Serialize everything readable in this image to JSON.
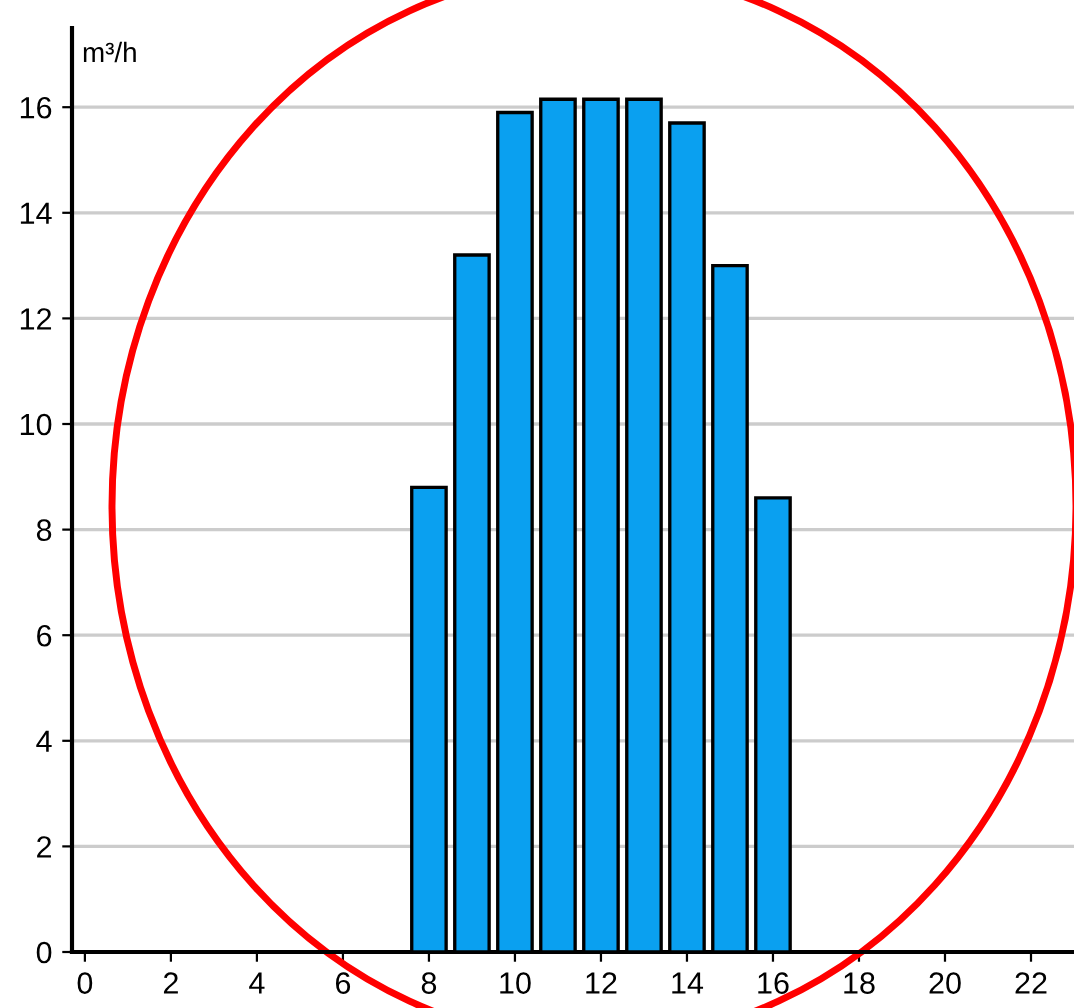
{
  "chart_data": {
    "type": "bar",
    "ylabel": "m³/h",
    "x": [
      8,
      9,
      10,
      11,
      12,
      13,
      14,
      15,
      16
    ],
    "values": [
      8.8,
      13.2,
      15.9,
      16.15,
      16.15,
      16.15,
      15.7,
      13.0,
      8.6
    ],
    "color": "#0aa0f0",
    "xlim": [
      -0.3,
      23
    ],
    "xticks": [
      0,
      2,
      4,
      6,
      8,
      10,
      12,
      14,
      16,
      18,
      20,
      22
    ],
    "ylim": [
      0,
      17.5
    ],
    "yticks": [
      0,
      2,
      4,
      6,
      8,
      10,
      12,
      14,
      16
    ],
    "grid": "y",
    "legend": false
  }
}
